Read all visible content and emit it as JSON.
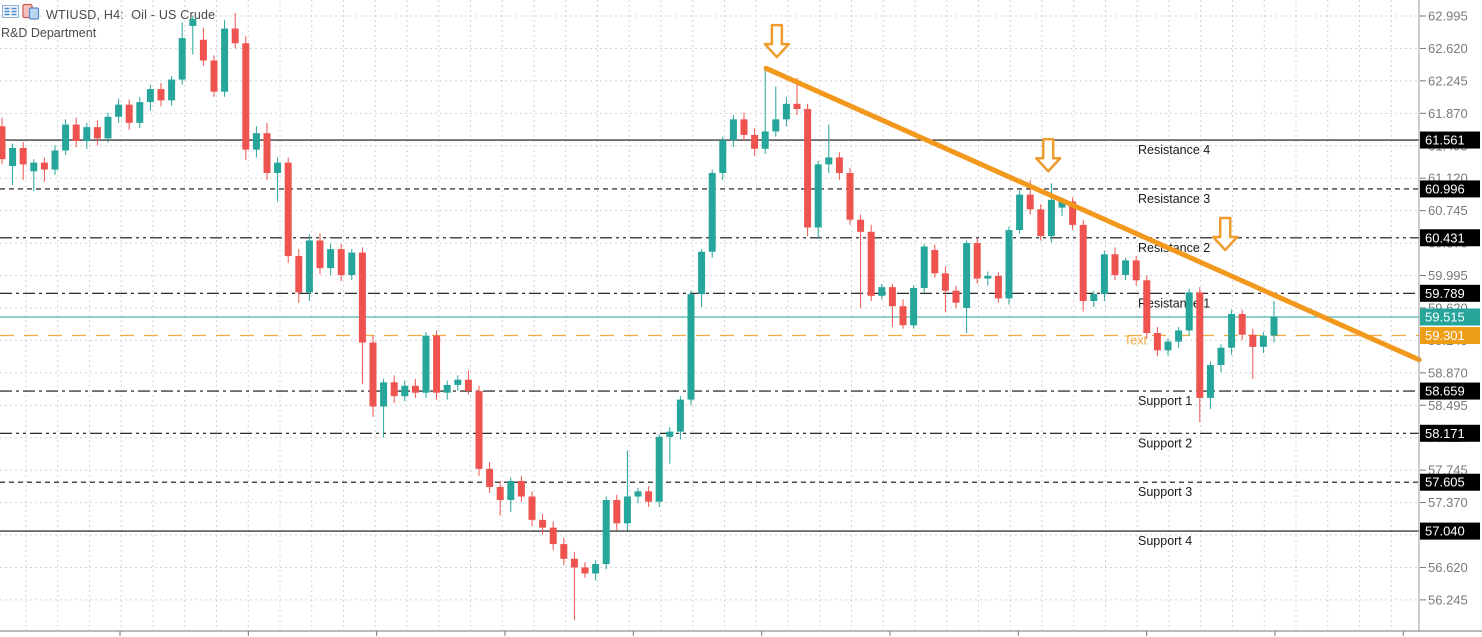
{
  "window": {
    "title": "WTIUSD, H4:  Oil - US Crude",
    "subtitle": "R&D Department"
  },
  "colors": {
    "up": "#26a69a",
    "down": "#ef5350",
    "grid": "#d4d4d4",
    "level_line": "#111111",
    "level_label": "#1a1a1a",
    "axis_text": "#7a7a7a",
    "axis_line": "#9a9a9a",
    "bid_line": "#4ab5ad",
    "text_line": "#f2a93b",
    "trend": "#f2991d",
    "arrow_stroke": "#ef9b2d",
    "badge_black": "#000000",
    "badge_teal": "#26a69a",
    "badge_orange": "#ee9d17",
    "badge_text": "#ffffff"
  },
  "price_axis": {
    "badges": [
      {
        "value": "61.561",
        "bg": "badge_black"
      },
      {
        "value": "60.996",
        "bg": "badge_black"
      },
      {
        "value": "60.431",
        "bg": "badge_black"
      },
      {
        "value": "59.789",
        "bg": "badge_black"
      },
      {
        "value": "59.515",
        "bg": "badge_teal"
      },
      {
        "value": "59.301",
        "bg": "badge_orange"
      },
      {
        "value": "58.659",
        "bg": "badge_black"
      },
      {
        "value": "58.171",
        "bg": "badge_black"
      },
      {
        "value": "57.605",
        "bg": "badge_black"
      },
      {
        "value": "57.040",
        "bg": "badge_black"
      }
    ]
  },
  "chart_data": {
    "type": "candlestick",
    "symbol": "WTIUSD",
    "timeframe": "H4",
    "title": "WTIUSD, H4:  Oil - US Crude",
    "ylim": [
      56.245,
      62.995
    ],
    "tick_step": 0.375,
    "grid": true,
    "current_price": 59.515,
    "levels": [
      {
        "label": "Resistance 4",
        "price": 61.561,
        "style": "solid"
      },
      {
        "label": "Resistance 3",
        "price": 60.996,
        "style": "dashed"
      },
      {
        "label": "Resistance 2",
        "price": 60.431,
        "style": "dash-dot-dot"
      },
      {
        "label": "Resistance 1",
        "price": 59.789,
        "style": "dash-dot"
      },
      {
        "label": "Support 1",
        "price": 58.659,
        "style": "dash-dot"
      },
      {
        "label": "Support 2",
        "price": 58.171,
        "style": "dash-dot-dot"
      },
      {
        "label": "Support 3",
        "price": 57.605,
        "style": "dashed"
      },
      {
        "label": "Support 4",
        "price": 57.04,
        "style": "solid"
      }
    ],
    "bid_line": {
      "price": 59.515
    },
    "text_line": {
      "label": "Text",
      "price": 59.301
    },
    "trendline": {
      "from_index": 72.08,
      "from_price": 62.39,
      "to_index": 133.7,
      "to_price": 59.02
    },
    "arrows": [
      {
        "index": 73.1,
        "top_price": 62.89
      },
      {
        "index": 98.7,
        "top_price": 61.57
      },
      {
        "index": 115.4,
        "top_price": 60.66
      }
    ],
    "candles": [
      [
        61.72,
        61.82,
        61.28,
        61.34
      ],
      [
        61.26,
        61.52,
        61.04,
        61.47
      ],
      [
        61.47,
        61.54,
        61.1,
        61.28
      ],
      [
        61.2,
        61.34,
        60.97,
        61.3
      ],
      [
        61.3,
        61.36,
        61.08,
        61.22
      ],
      [
        61.22,
        61.5,
        61.16,
        61.44
      ],
      [
        61.44,
        61.8,
        61.39,
        61.74
      ],
      [
        61.74,
        61.82,
        61.48,
        61.55
      ],
      [
        61.55,
        61.76,
        61.46,
        61.71
      ],
      [
        61.71,
        61.79,
        61.5,
        61.58
      ],
      [
        61.58,
        61.88,
        61.53,
        61.83
      ],
      [
        61.83,
        62.04,
        61.76,
        61.97
      ],
      [
        61.97,
        62.03,
        61.68,
        61.76
      ],
      [
        61.76,
        62.06,
        61.7,
        62.0
      ],
      [
        62.0,
        62.2,
        61.9,
        62.15
      ],
      [
        62.15,
        62.22,
        61.95,
        62.02
      ],
      [
        62.02,
        62.3,
        61.96,
        62.26
      ],
      [
        62.26,
        62.92,
        62.2,
        62.74
      ],
      [
        62.88,
        63.0,
        62.55,
        62.96
      ],
      [
        62.72,
        62.86,
        62.42,
        62.48
      ],
      [
        62.48,
        62.54,
        62.06,
        62.12
      ],
      [
        62.12,
        62.95,
        62.06,
        62.85
      ],
      [
        62.85,
        63.03,
        62.62,
        62.68
      ],
      [
        62.68,
        62.76,
        61.33,
        61.45
      ],
      [
        61.45,
        61.72,
        61.36,
        61.64
      ],
      [
        61.64,
        61.76,
        61.1,
        61.18
      ],
      [
        61.18,
        61.36,
        60.85,
        61.3
      ],
      [
        61.3,
        61.36,
        60.14,
        60.22
      ],
      [
        60.22,
        60.3,
        59.68,
        59.8
      ],
      [
        59.8,
        60.47,
        59.7,
        60.4
      ],
      [
        60.4,
        60.48,
        60.01,
        60.08
      ],
      [
        60.08,
        60.36,
        60.0,
        60.3
      ],
      [
        60.3,
        60.36,
        59.93,
        60.0
      ],
      [
        60.0,
        60.3,
        59.94,
        60.26
      ],
      [
        60.26,
        60.32,
        58.74,
        59.22
      ],
      [
        59.22,
        59.3,
        58.36,
        58.48
      ],
      [
        58.48,
        58.8,
        58.12,
        58.76
      ],
      [
        58.76,
        58.84,
        58.52,
        58.6
      ],
      [
        58.6,
        58.78,
        58.54,
        58.72
      ],
      [
        58.72,
        58.8,
        58.58,
        58.64
      ],
      [
        58.64,
        59.34,
        58.58,
        59.3
      ],
      [
        59.3,
        59.36,
        58.56,
        58.64
      ],
      [
        58.64,
        58.78,
        58.56,
        58.73
      ],
      [
        58.73,
        58.84,
        58.66,
        58.79
      ],
      [
        58.79,
        58.9,
        58.62,
        58.66
      ],
      [
        58.66,
        58.72,
        57.68,
        57.76
      ],
      [
        57.76,
        57.84,
        57.48,
        57.55
      ],
      [
        57.55,
        57.62,
        57.22,
        57.4
      ],
      [
        57.4,
        57.66,
        57.26,
        57.62
      ],
      [
        57.62,
        57.68,
        57.38,
        57.44
      ],
      [
        57.44,
        57.5,
        57.1,
        57.17
      ],
      [
        57.17,
        57.24,
        57.0,
        57.08
      ],
      [
        57.08,
        57.15,
        56.82,
        56.89
      ],
      [
        56.89,
        56.96,
        56.65,
        56.72
      ],
      [
        56.72,
        56.8,
        56.01,
        56.62
      ],
      [
        56.62,
        56.68,
        56.5,
        56.55
      ],
      [
        56.55,
        56.7,
        56.47,
        56.66
      ],
      [
        56.66,
        57.44,
        56.6,
        57.4
      ],
      [
        57.4,
        57.46,
        57.05,
        57.13
      ],
      [
        57.13,
        57.97,
        57.05,
        57.44
      ],
      [
        57.44,
        57.54,
        57.36,
        57.5
      ],
      [
        57.5,
        57.56,
        57.32,
        57.38
      ],
      [
        57.38,
        58.16,
        57.32,
        58.13
      ],
      [
        58.13,
        58.24,
        57.82,
        58.19
      ],
      [
        58.19,
        58.6,
        58.1,
        58.56
      ],
      [
        58.56,
        59.82,
        58.5,
        59.78
      ],
      [
        59.78,
        60.3,
        59.63,
        60.27
      ],
      [
        60.27,
        61.22,
        60.2,
        61.18
      ],
      [
        61.18,
        61.6,
        61.1,
        61.56
      ],
      [
        61.56,
        61.85,
        61.48,
        61.8
      ],
      [
        61.8,
        61.88,
        61.55,
        61.62
      ],
      [
        61.62,
        61.7,
        61.38,
        61.46
      ],
      [
        61.46,
        62.39,
        61.4,
        61.66
      ],
      [
        61.66,
        62.18,
        61.6,
        61.8
      ],
      [
        61.8,
        62.06,
        61.72,
        61.98
      ],
      [
        61.98,
        62.28,
        61.85,
        61.92
      ],
      [
        61.92,
        61.98,
        60.45,
        60.55
      ],
      [
        60.55,
        61.32,
        60.42,
        61.28
      ],
      [
        61.28,
        61.74,
        61.18,
        61.36
      ],
      [
        61.36,
        61.42,
        61.1,
        61.18
      ],
      [
        61.18,
        61.24,
        60.58,
        60.64
      ],
      [
        60.64,
        60.7,
        59.62,
        60.5
      ],
      [
        60.5,
        60.58,
        59.7,
        59.76
      ],
      [
        59.76,
        59.9,
        59.72,
        59.86
      ],
      [
        59.86,
        59.9,
        59.4,
        59.64
      ],
      [
        59.64,
        59.72,
        59.38,
        59.42
      ],
      [
        59.42,
        59.88,
        59.38,
        59.85
      ],
      [
        59.85,
        60.36,
        59.8,
        60.33
      ],
      [
        60.29,
        60.35,
        59.97,
        60.02
      ],
      [
        60.02,
        60.1,
        59.57,
        59.82
      ],
      [
        59.82,
        59.88,
        59.62,
        59.68
      ],
      [
        59.62,
        60.4,
        59.33,
        60.37
      ],
      [
        60.37,
        60.42,
        59.9,
        59.96
      ],
      [
        59.96,
        60.04,
        59.88,
        59.99
      ],
      [
        59.99,
        60.03,
        59.68,
        59.73
      ],
      [
        59.73,
        60.56,
        59.66,
        60.52
      ],
      [
        60.52,
        60.98,
        60.48,
        60.93
      ],
      [
        60.93,
        61.1,
        60.7,
        60.76
      ],
      [
        60.76,
        60.82,
        60.4,
        60.45
      ],
      [
        60.45,
        61.06,
        60.38,
        60.87
      ],
      [
        60.78,
        60.9,
        60.68,
        60.85
      ],
      [
        60.85,
        60.9,
        60.52,
        60.58
      ],
      [
        60.58,
        60.64,
        59.58,
        59.7
      ],
      [
        59.7,
        59.82,
        59.63,
        59.78
      ],
      [
        59.78,
        60.28,
        59.7,
        60.24
      ],
      [
        60.24,
        60.32,
        59.94,
        60.0
      ],
      [
        60.0,
        60.2,
        59.94,
        60.17
      ],
      [
        60.17,
        60.22,
        59.88,
        59.94
      ],
      [
        59.94,
        60.0,
        59.26,
        59.33
      ],
      [
        59.33,
        59.4,
        59.06,
        59.13
      ],
      [
        59.13,
        59.27,
        59.07,
        59.23
      ],
      [
        59.23,
        59.4,
        59.16,
        59.36
      ],
      [
        59.36,
        59.84,
        59.3,
        59.8
      ],
      [
        59.8,
        59.86,
        58.3,
        58.58
      ],
      [
        58.58,
        59.0,
        58.45,
        58.96
      ],
      [
        58.96,
        59.2,
        58.88,
        59.16
      ],
      [
        59.16,
        59.6,
        59.08,
        59.55
      ],
      [
        59.55,
        59.6,
        59.25,
        59.31
      ],
      [
        59.31,
        59.38,
        58.8,
        59.17
      ],
      [
        59.17,
        59.34,
        59.1,
        59.3
      ],
      [
        59.3,
        59.7,
        59.22,
        59.52
      ]
    ]
  }
}
